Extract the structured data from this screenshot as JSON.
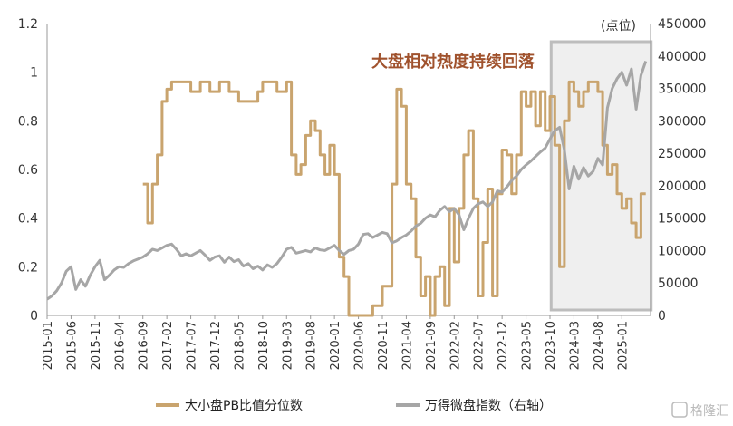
{
  "chart_data": {
    "type": "line",
    "annotation": "大盘相对热度持续回落",
    "right_unit": "(点位)",
    "x_ticks": [
      "2015-01",
      "2015-06",
      "2015-11",
      "2016-04",
      "2016-09",
      "2017-02",
      "2017-07",
      "2017-12",
      "2018-05",
      "2018-10",
      "2019-03",
      "2019-08",
      "2020-01",
      "2020-06",
      "2020-11",
      "2021-04",
      "2021-09",
      "2022-02",
      "2022-07",
      "2022-12",
      "2023-05",
      "2023-10",
      "2024-03",
      "2024-08",
      "2025-01"
    ],
    "x_range": [
      "2015-01",
      "2025-07"
    ],
    "y_left": {
      "range": [
        0,
        1.2
      ],
      "ticks": [
        "0",
        "0.2",
        "0.4",
        "0.6",
        "0.8",
        "1",
        "1.2"
      ]
    },
    "y_right": {
      "range": [
        0,
        450000
      ],
      "ticks": [
        "0",
        "50000",
        "100000",
        "150000",
        "200000",
        "250000",
        "300000",
        "350000",
        "400000",
        "450000"
      ]
    },
    "highlight": {
      "from": "2023-11",
      "to": "2025-06"
    },
    "series": [
      {
        "name": "大小盘PB比值分位数",
        "axis": "left",
        "color": "#C9A46E",
        "points": [
          [
            "2016-09",
            0.54
          ],
          [
            "2016-10",
            0.38
          ],
          [
            "2016-11",
            0.54
          ],
          [
            "2016-12",
            0.66
          ],
          [
            "2017-01",
            0.88
          ],
          [
            "2017-02",
            0.93
          ],
          [
            "2017-03",
            0.96
          ],
          [
            "2017-06",
            0.96
          ],
          [
            "2017-07",
            0.92
          ],
          [
            "2017-09",
            0.96
          ],
          [
            "2017-11",
            0.92
          ],
          [
            "2018-01",
            0.96
          ],
          [
            "2018-03",
            0.92
          ],
          [
            "2018-05",
            0.88
          ],
          [
            "2018-09",
            0.92
          ],
          [
            "2018-10",
            0.96
          ],
          [
            "2019-01",
            0.92
          ],
          [
            "2019-03",
            0.96
          ],
          [
            "2019-04",
            0.66
          ],
          [
            "2019-05",
            0.58
          ],
          [
            "2019-06",
            0.62
          ],
          [
            "2019-07",
            0.74
          ],
          [
            "2019-08",
            0.8
          ],
          [
            "2019-09",
            0.76
          ],
          [
            "2019-10",
            0.66
          ],
          [
            "2019-11",
            0.58
          ],
          [
            "2019-12",
            0.7
          ],
          [
            "2020-01",
            0.58
          ],
          [
            "2020-02",
            0.24
          ],
          [
            "2020-03",
            0.16
          ],
          [
            "2020-04",
            0.0
          ],
          [
            "2020-07",
            0.0
          ],
          [
            "2020-09",
            0.04
          ],
          [
            "2020-11",
            0.12
          ],
          [
            "2021-01",
            0.54
          ],
          [
            "2021-02",
            0.93
          ],
          [
            "2021-03",
            0.86
          ],
          [
            "2021-04",
            0.54
          ],
          [
            "2021-05",
            0.48
          ],
          [
            "2021-06",
            0.24
          ],
          [
            "2021-07",
            0.08
          ],
          [
            "2021-08",
            0.16
          ],
          [
            "2021-09",
            0.0
          ],
          [
            "2021-10",
            0.16
          ],
          [
            "2021-11",
            0.2
          ],
          [
            "2021-12",
            0.04
          ],
          [
            "2022-01",
            0.44
          ],
          [
            "2022-02",
            0.22
          ],
          [
            "2022-03",
            0.44
          ],
          [
            "2022-04",
            0.66
          ],
          [
            "2022-05",
            0.76
          ],
          [
            "2022-06",
            0.48
          ],
          [
            "2022-07",
            0.08
          ],
          [
            "2022-08",
            0.3
          ],
          [
            "2022-09",
            0.52
          ],
          [
            "2022-10",
            0.08
          ],
          [
            "2022-11",
            0.5
          ],
          [
            "2022-12",
            0.68
          ],
          [
            "2023-01",
            0.66
          ],
          [
            "2023-02",
            0.5
          ],
          [
            "2023-03",
            0.66
          ],
          [
            "2023-04",
            0.92
          ],
          [
            "2023-05",
            0.86
          ],
          [
            "2023-06",
            0.92
          ],
          [
            "2023-07",
            0.78
          ],
          [
            "2023-08",
            0.92
          ],
          [
            "2023-09",
            0.76
          ],
          [
            "2023-10",
            0.9
          ],
          [
            "2023-11",
            0.7
          ],
          [
            "2023-12",
            0.2
          ],
          [
            "2024-01",
            0.8
          ],
          [
            "2024-02",
            0.96
          ],
          [
            "2024-03",
            0.92
          ],
          [
            "2024-04",
            0.86
          ],
          [
            "2024-05",
            0.92
          ],
          [
            "2024-06",
            0.96
          ],
          [
            "2024-08",
            0.92
          ],
          [
            "2024-09",
            0.7
          ],
          [
            "2024-10",
            0.58
          ],
          [
            "2024-11",
            0.62
          ],
          [
            "2024-12",
            0.5
          ],
          [
            "2025-01",
            0.44
          ],
          [
            "2025-02",
            0.48
          ],
          [
            "2025-03",
            0.38
          ],
          [
            "2025-04",
            0.32
          ],
          [
            "2025-05",
            0.5
          ],
          [
            "2025-06",
            0.5
          ]
        ]
      },
      {
        "name": "万得微盘指数（右轴）",
        "axis": "right",
        "color": "#A6A6A6",
        "points": [
          [
            "2015-01",
            25000
          ],
          [
            "2015-02",
            30000
          ],
          [
            "2015-03",
            38000
          ],
          [
            "2015-04",
            50000
          ],
          [
            "2015-05",
            68000
          ],
          [
            "2015-06",
            75000
          ],
          [
            "2015-07",
            40000
          ],
          [
            "2015-08",
            55000
          ],
          [
            "2015-09",
            45000
          ],
          [
            "2015-10",
            62000
          ],
          [
            "2015-11",
            75000
          ],
          [
            "2015-12",
            85000
          ],
          [
            "2016-01",
            55000
          ],
          [
            "2016-02",
            62000
          ],
          [
            "2016-03",
            70000
          ],
          [
            "2016-04",
            75000
          ],
          [
            "2016-05",
            74000
          ],
          [
            "2016-06",
            80000
          ],
          [
            "2016-07",
            84000
          ],
          [
            "2016-08",
            87000
          ],
          [
            "2016-09",
            90000
          ],
          [
            "2016-10",
            95000
          ],
          [
            "2016-11",
            102000
          ],
          [
            "2016-12",
            100000
          ],
          [
            "2017-01",
            104000
          ],
          [
            "2017-02",
            108000
          ],
          [
            "2017-03",
            110000
          ],
          [
            "2017-04",
            102000
          ],
          [
            "2017-05",
            92000
          ],
          [
            "2017-06",
            95000
          ],
          [
            "2017-07",
            92000
          ],
          [
            "2017-08",
            96000
          ],
          [
            "2017-09",
            100000
          ],
          [
            "2017-10",
            93000
          ],
          [
            "2017-11",
            85000
          ],
          [
            "2017-12",
            90000
          ],
          [
            "2018-01",
            92000
          ],
          [
            "2018-02",
            82000
          ],
          [
            "2018-03",
            90000
          ],
          [
            "2018-04",
            83000
          ],
          [
            "2018-05",
            86000
          ],
          [
            "2018-06",
            76000
          ],
          [
            "2018-07",
            80000
          ],
          [
            "2018-08",
            72000
          ],
          [
            "2018-09",
            76000
          ],
          [
            "2018-10",
            70000
          ],
          [
            "2018-11",
            78000
          ],
          [
            "2018-12",
            74000
          ],
          [
            "2019-01",
            80000
          ],
          [
            "2019-02",
            90000
          ],
          [
            "2019-03",
            102000
          ],
          [
            "2019-04",
            105000
          ],
          [
            "2019-05",
            96000
          ],
          [
            "2019-06",
            98000
          ],
          [
            "2019-07",
            100000
          ],
          [
            "2019-08",
            98000
          ],
          [
            "2019-09",
            104000
          ],
          [
            "2019-10",
            101000
          ],
          [
            "2019-11",
            100000
          ],
          [
            "2019-12",
            104000
          ],
          [
            "2020-01",
            108000
          ],
          [
            "2020-02",
            100000
          ],
          [
            "2020-03",
            94000
          ],
          [
            "2020-04",
            100000
          ],
          [
            "2020-05",
            102000
          ],
          [
            "2020-06",
            110000
          ],
          [
            "2020-07",
            125000
          ],
          [
            "2020-08",
            126000
          ],
          [
            "2020-09",
            120000
          ],
          [
            "2020-10",
            124000
          ],
          [
            "2020-11",
            128000
          ],
          [
            "2020-12",
            126000
          ],
          [
            "2021-01",
            112000
          ],
          [
            "2021-02",
            115000
          ],
          [
            "2021-03",
            120000
          ],
          [
            "2021-04",
            124000
          ],
          [
            "2021-05",
            130000
          ],
          [
            "2021-06",
            138000
          ],
          [
            "2021-07",
            142000
          ],
          [
            "2021-08",
            150000
          ],
          [
            "2021-09",
            155000
          ],
          [
            "2021-10",
            152000
          ],
          [
            "2021-11",
            162000
          ],
          [
            "2021-12",
            168000
          ],
          [
            "2022-01",
            160000
          ],
          [
            "2022-02",
            165000
          ],
          [
            "2022-03",
            155000
          ],
          [
            "2022-04",
            132000
          ],
          [
            "2022-05",
            150000
          ],
          [
            "2022-06",
            165000
          ],
          [
            "2022-07",
            172000
          ],
          [
            "2022-08",
            175000
          ],
          [
            "2022-09",
            168000
          ],
          [
            "2022-10",
            175000
          ],
          [
            "2022-11",
            192000
          ],
          [
            "2022-12",
            190000
          ],
          [
            "2023-01",
            198000
          ],
          [
            "2023-02",
            208000
          ],
          [
            "2023-03",
            215000
          ],
          [
            "2023-04",
            225000
          ],
          [
            "2023-05",
            232000
          ],
          [
            "2023-06",
            238000
          ],
          [
            "2023-07",
            245000
          ],
          [
            "2023-08",
            252000
          ],
          [
            "2023-09",
            258000
          ],
          [
            "2023-10",
            272000
          ],
          [
            "2023-11",
            285000
          ],
          [
            "2023-12",
            290000
          ],
          [
            "2024-01",
            255000
          ],
          [
            "2024-02",
            195000
          ],
          [
            "2024-03",
            230000
          ],
          [
            "2024-04",
            210000
          ],
          [
            "2024-05",
            228000
          ],
          [
            "2024-06",
            215000
          ],
          [
            "2024-07",
            222000
          ],
          [
            "2024-08",
            242000
          ],
          [
            "2024-09",
            232000
          ],
          [
            "2024-10",
            320000
          ],
          [
            "2024-11",
            350000
          ],
          [
            "2024-12",
            365000
          ],
          [
            "2025-01",
            375000
          ],
          [
            "2025-02",
            355000
          ],
          [
            "2025-03",
            380000
          ],
          [
            "2025-04",
            318000
          ],
          [
            "2025-05",
            370000
          ],
          [
            "2025-06",
            392000
          ]
        ]
      }
    ]
  },
  "watermark": "格隆汇"
}
